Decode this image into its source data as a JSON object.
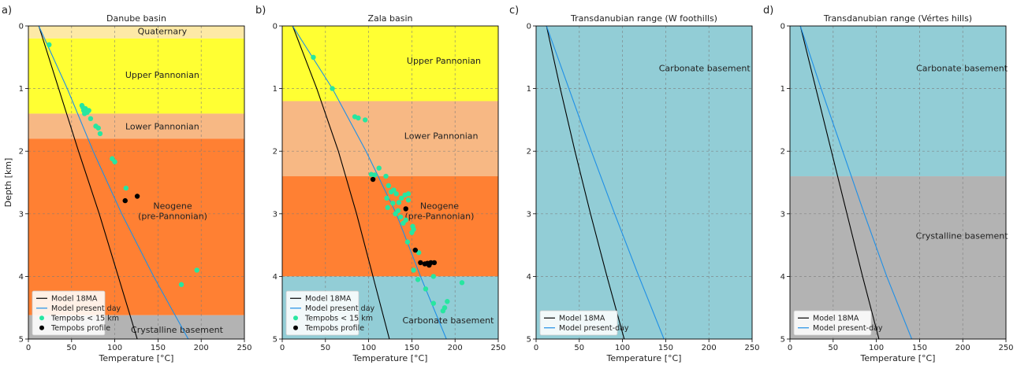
{
  "chart_data": [
    {
      "type": "scatter",
      "panel": "a)",
      "title": "Danube basin",
      "xlabel": "Temperature [$^\\circ$C]",
      "ylabel": "Depth [km]",
      "xlim": [
        0,
        250
      ],
      "ylim": [
        5,
        0
      ],
      "xticks": [
        "0",
        "50",
        "100",
        "150",
        "200",
        "250"
      ],
      "yticks": [
        "0",
        "1",
        "2",
        "3",
        "4",
        "5"
      ],
      "grid": true,
      "legend_position": "bottom-left",
      "layers": [
        {
          "name": "Quaternary",
          "top": 0,
          "bottom": 0.2,
          "color": "#fde9a6",
          "label_temp": 155,
          "label_depth": 0.08
        },
        {
          "name": "Upper Pannonian",
          "top": 0.2,
          "bottom": 1.4,
          "color": "#ffff33",
          "label_temp": 155,
          "label_depth": 0.78
        },
        {
          "name": "Lower Pannonian",
          "top": 1.4,
          "bottom": 1.8,
          "color": "#f7b884",
          "label_temp": 155,
          "label_depth": 1.6
        },
        {
          "name": "Neogene\n(pre-Pannonian)",
          "top": 1.8,
          "bottom": 4.62,
          "color": "#ff8033",
          "label_temp": 167,
          "label_depth": 2.95
        },
        {
          "name": "Crystalline basement",
          "top": 4.62,
          "bottom": 5,
          "color": "#b3b3b3",
          "label_temp": 172,
          "label_depth": 4.85
        }
      ],
      "series": [
        {
          "name": "Model 18MA",
          "kind": "line",
          "color": "#000000",
          "points": [
            [
              12,
              0
            ],
            [
              35,
              1
            ],
            [
              58,
              2
            ],
            [
              82,
              3
            ],
            [
              104,
              4
            ],
            [
              126,
              5
            ]
          ]
        },
        {
          "name": "Model present day",
          "kind": "line",
          "color": "#1f8fe6",
          "points": [
            [
              12,
              0
            ],
            [
              45,
              1
            ],
            [
              75,
              2
            ],
            [
              108,
              3
            ],
            [
              145,
              4
            ],
            [
              185,
              5
            ]
          ]
        },
        {
          "name": "Tempobs < 15 km",
          "kind": "scatter",
          "color": "#27e6a0",
          "points": [
            [
              24,
              0.3
            ],
            [
              62,
              1.27
            ],
            [
              63,
              1.3
            ],
            [
              64,
              1.35
            ],
            [
              66,
              1.34
            ],
            [
              65,
              1.4
            ],
            [
              68,
              1.38
            ],
            [
              70,
              1.35
            ],
            [
              66,
              1.32
            ],
            [
              72,
              1.48
            ],
            [
              78,
              1.6
            ],
            [
              81,
              1.63
            ],
            [
              83,
              1.72
            ],
            [
              97,
              2.12
            ],
            [
              100,
              2.17
            ],
            [
              113,
              2.59
            ],
            [
              195,
              3.9
            ],
            [
              177,
              4.13
            ]
          ]
        },
        {
          "name": "Tempobs profile",
          "kind": "scatter",
          "color": "#000000",
          "points": [
            [
              126,
              2.72
            ],
            [
              112,
              2.79
            ]
          ]
        }
      ]
    },
    {
      "type": "scatter",
      "panel": "b)",
      "title": "Zala basin",
      "xlabel": "Temperature [$^\\circ$C]",
      "ylabel": "",
      "xlim": [
        0,
        250
      ],
      "ylim": [
        5,
        0
      ],
      "xticks": [
        "0",
        "50",
        "100",
        "150",
        "200",
        "250"
      ],
      "yticks": [
        "0",
        "1",
        "2",
        "3",
        "4",
        "5"
      ],
      "grid": true,
      "legend_position": "bottom-left",
      "layers": [
        {
          "name": "Upper Pannonian",
          "top": 0,
          "bottom": 1.2,
          "color": "#ffff33",
          "label_temp": 187,
          "label_depth": 0.55
        },
        {
          "name": "Lower Pannonian",
          "top": 1.2,
          "bottom": 2.4,
          "color": "#f7b884",
          "label_temp": 184,
          "label_depth": 1.75
        },
        {
          "name": "Neogene\n(pre-Pannonian)",
          "top": 2.4,
          "bottom": 4.0,
          "color": "#ff8033",
          "label_temp": 182,
          "label_depth": 2.95
        },
        {
          "name": "Carbonate basement",
          "top": 4.0,
          "bottom": 5,
          "color": "#92cdd6",
          "label_temp": 192,
          "label_depth": 4.7
        }
      ],
      "series": [
        {
          "name": "Model 18MA",
          "kind": "line",
          "color": "#000000",
          "points": [
            [
              12,
              0
            ],
            [
              40,
              1
            ],
            [
              65,
              2
            ],
            [
              86,
              3
            ],
            [
              105,
              4
            ],
            [
              124,
              5
            ]
          ]
        },
        {
          "name": "Model present day",
          "kind": "line",
          "color": "#1f8fe6",
          "points": [
            [
              12,
              0
            ],
            [
              58,
              1
            ],
            [
              97,
              2
            ],
            [
              132,
              3
            ],
            [
              160,
              4
            ],
            [
              190,
              5
            ]
          ]
        },
        {
          "name": "Tempobs < 15 km",
          "kind": "scatter",
          "color": "#27e6a0",
          "points": [
            [
              36,
              0.5
            ],
            [
              58,
              1.0
            ],
            [
              84,
              1.45
            ],
            [
              88,
              1.47
            ],
            [
              96,
              1.5
            ],
            [
              103,
              2.37
            ],
            [
              107,
              2.38
            ],
            [
              112,
              2.27
            ],
            [
              120,
              2.4
            ],
            [
              123,
              2.55
            ],
            [
              126,
              2.65
            ],
            [
              129,
              2.62
            ],
            [
              132,
              2.68
            ],
            [
              121,
              2.75
            ],
            [
              128,
              2.83
            ],
            [
              135,
              2.82
            ],
            [
              138,
              2.75
            ],
            [
              142,
              2.7
            ],
            [
              146,
              2.68
            ],
            [
              146,
              2.78
            ],
            [
              122,
              2.9
            ],
            [
              131,
              3.0
            ],
            [
              134,
              2.95
            ],
            [
              137,
              3.05
            ],
            [
              140,
              3.15
            ],
            [
              143,
              3.1
            ],
            [
              151,
              3.2
            ],
            [
              152,
              3.25
            ],
            [
              150,
              3.3
            ],
            [
              145,
              3.45
            ],
            [
              158,
              3.62
            ],
            [
              152,
              3.9
            ],
            [
              157,
              4.05
            ],
            [
              175,
              4.0
            ],
            [
              166,
              4.2
            ],
            [
              208,
              4.1
            ],
            [
              188,
              4.5
            ],
            [
              186,
              4.55
            ],
            [
              175,
              4.43
            ],
            [
              191,
              4.4
            ]
          ]
        },
        {
          "name": "Tempobs profile",
          "kind": "scatter",
          "color": "#000000",
          "points": [
            [
              105,
              2.45
            ],
            [
              143,
              2.92
            ],
            [
              154,
              3.58
            ],
            [
              160,
              3.78
            ],
            [
              165,
              3.8
            ],
            [
              168,
              3.79
            ],
            [
              170,
              3.82
            ],
            [
              172,
              3.78
            ],
            [
              176,
              3.78
            ]
          ]
        }
      ]
    },
    {
      "type": "line",
      "panel": "c)",
      "title": "Transdanubian range (W foothills)",
      "xlabel": "Temperature [$^\\circ$C]",
      "ylabel": "",
      "xlim": [
        0,
        250
      ],
      "ylim": [
        5,
        0
      ],
      "xticks": [
        "0",
        "50",
        "100",
        "150",
        "200",
        "250"
      ],
      "yticks": [
        "0",
        "1",
        "2",
        "3",
        "4",
        "5"
      ],
      "grid": true,
      "legend_position": "bottom-left",
      "layers": [
        {
          "name": "Carbonate basement",
          "top": 0,
          "bottom": 5,
          "color": "#92cdd6",
          "label_temp": 195,
          "label_depth": 0.67
        }
      ],
      "series": [
        {
          "name": "Model 18MA",
          "kind": "line",
          "color": "#000000",
          "points": [
            [
              12,
              0
            ],
            [
              28,
              1
            ],
            [
              45,
              2
            ],
            [
              63,
              3
            ],
            [
              82,
              4
            ],
            [
              102,
              5
            ]
          ]
        },
        {
          "name": "Model present-day",
          "kind": "line",
          "color": "#1f8fe6",
          "points": [
            [
              12,
              0
            ],
            [
              38,
              1
            ],
            [
              64,
              2
            ],
            [
              91,
              3
            ],
            [
              119,
              4
            ],
            [
              148,
              5
            ]
          ]
        }
      ]
    },
    {
      "type": "line",
      "panel": "d)",
      "title": "Transdanubian range (Vértes hills)",
      "xlabel": "Temperature [$^\\circ$C]",
      "ylabel": "",
      "xlim": [
        0,
        250
      ],
      "ylim": [
        5,
        0
      ],
      "xticks": [
        "0",
        "50",
        "100",
        "150",
        "200",
        "250"
      ],
      "yticks": [
        "0",
        "1",
        "2",
        "3",
        "4",
        "5"
      ],
      "grid": true,
      "legend_position": "bottom-left",
      "layers": [
        {
          "name": "Carbonate basement",
          "top": 0,
          "bottom": 2.4,
          "color": "#92cdd6",
          "label_temp": 199,
          "label_depth": 0.67
        },
        {
          "name": "Crystalline basement",
          "top": 2.4,
          "bottom": 5,
          "color": "#b3b3b3",
          "label_temp": 199,
          "label_depth": 3.35
        }
      ],
      "series": [
        {
          "name": "Model 18MA",
          "kind": "line",
          "color": "#000000",
          "points": [
            [
              12,
              0
            ],
            [
              30,
              1
            ],
            [
              48,
              2
            ],
            [
              66,
              3
            ],
            [
              84,
              4
            ],
            [
              103,
              5
            ]
          ]
        },
        {
          "name": "Model present-day",
          "kind": "line",
          "color": "#1f8fe6",
          "points": [
            [
              12,
              0
            ],
            [
              36,
              1
            ],
            [
              61,
              2
            ],
            [
              86,
              3
            ],
            [
              112,
              4
            ],
            [
              141,
              5
            ]
          ]
        }
      ]
    }
  ]
}
